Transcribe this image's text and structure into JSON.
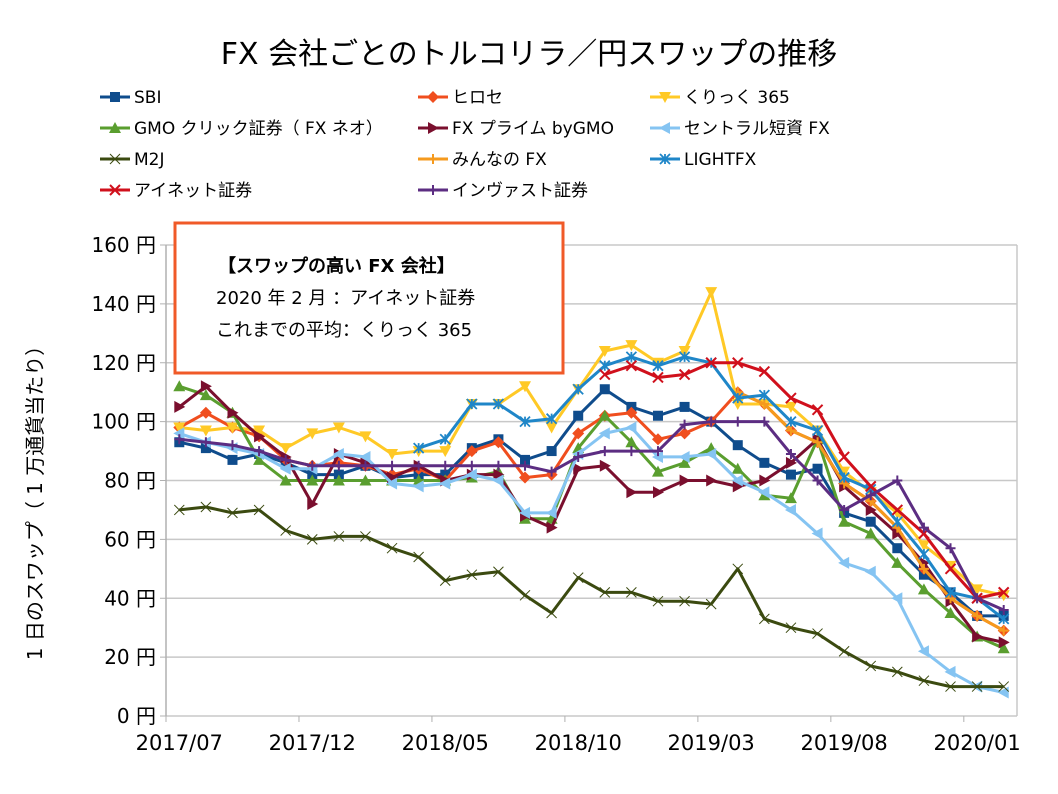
{
  "chart_data": {
    "type": "line",
    "title": "FX 会社ごとのトルコリラ／円スワップの推移",
    "xlabel": "",
    "ylabel": "1 日のスワップ（ 1 万通貨当たり）",
    "ylim": [
      0,
      160
    ],
    "y_ticks": [
      0,
      20,
      40,
      60,
      80,
      100,
      120,
      140,
      160
    ],
    "y_tick_suffix": " 円",
    "grid": true,
    "legend_position": "top",
    "x": [
      "2017/07",
      "2017/08",
      "2017/09",
      "2017/10",
      "2017/11",
      "2017/12",
      "2018/01",
      "2018/02",
      "2018/03",
      "2018/04",
      "2018/05",
      "2018/06",
      "2018/07",
      "2018/08",
      "2018/09",
      "2018/10",
      "2018/11",
      "2018/12",
      "2019/01",
      "2019/02",
      "2019/03",
      "2019/04",
      "2019/05",
      "2019/06",
      "2019/07",
      "2019/08",
      "2019/09",
      "2019/10",
      "2019/11",
      "2019/12",
      "2020/01",
      "2020/02"
    ],
    "x_tick_labels": [
      "2017/07",
      "2017/12",
      "2018/05",
      "2018/10",
      "2019/03",
      "2019/08",
      "2020/01"
    ],
    "series": [
      {
        "name": "SBI",
        "color": "#0f4c8c",
        "marker": "square",
        "values": [
          93,
          91,
          87,
          89,
          86,
          82,
          82,
          85,
          81,
          82,
          82,
          91,
          94,
          87,
          90,
          102,
          111,
          105,
          102,
          105,
          100,
          92,
          86,
          82,
          84,
          69,
          66,
          57,
          48,
          42,
          34,
          34
        ]
      },
      {
        "name": "ヒロセ",
        "color": "#f04e1e",
        "marker": "diamond",
        "values": [
          98,
          103,
          98,
          95,
          87,
          85,
          86,
          85,
          82,
          84,
          80,
          90,
          93,
          81,
          82,
          96,
          102,
          103,
          94,
          96,
          100,
          110,
          106,
          97,
          93,
          79,
          73,
          64,
          50,
          40,
          34,
          29
        ]
      },
      {
        "name": "くりっく 365",
        "color": "#ffc926",
        "marker": "triangle-down",
        "values": [
          98,
          97,
          98,
          97,
          91,
          96,
          98,
          95,
          89,
          90,
          90,
          106,
          106,
          112,
          98,
          111,
          124,
          126,
          120,
          124,
          144,
          106,
          106,
          105,
          97,
          83,
          76,
          69,
          58,
          51,
          43,
          41
        ]
      },
      {
        "name": "GMO クリック証券（ FX ネオ）",
        "color": "#5a9e2f",
        "marker": "triangle-up",
        "values": [
          112,
          109,
          103,
          87,
          80,
          80,
          80,
          80,
          80,
          80,
          80,
          81,
          83,
          67,
          67,
          91,
          102,
          93,
          83,
          86,
          91,
          84,
          75,
          74,
          94,
          66,
          62,
          52,
          43,
          35,
          27,
          23
        ]
      },
      {
        "name": "FX プライム byGMO",
        "color": "#7a0f2e",
        "marker": "triangle-right",
        "values": [
          105,
          112,
          103,
          95,
          88,
          72,
          89,
          86,
          81,
          85,
          80,
          82,
          82,
          68,
          64,
          84,
          85,
          76,
          76,
          80,
          80,
          78,
          80,
          86,
          94,
          78,
          70,
          62,
          52,
          39,
          27,
          25
        ]
      },
      {
        "name": "セントラル短資 FX",
        "color": "#85c4f2",
        "marker": "triangle-left",
        "values": [
          96,
          93,
          91,
          89,
          84,
          84,
          89,
          88,
          79,
          78,
          79,
          82,
          80,
          69,
          69,
          89,
          96,
          98,
          88,
          88,
          89,
          80,
          76,
          70,
          62,
          52,
          49,
          40,
          22,
          15,
          10,
          8
        ]
      },
      {
        "name": "M2J",
        "color": "#3b4a10",
        "marker": "bowtie",
        "values": [
          70,
          71,
          69,
          70,
          63,
          60,
          61,
          61,
          57,
          54,
          46,
          48,
          49,
          41,
          35,
          47,
          42,
          42,
          39,
          39,
          38,
          50,
          33,
          30,
          28,
          22,
          17,
          15,
          12,
          10,
          10,
          10
        ]
      },
      {
        "name": "みんなの FX",
        "color": "#f59a1e",
        "marker": "plus",
        "values": [
          null,
          null,
          null,
          null,
          null,
          null,
          null,
          null,
          null,
          null,
          null,
          null,
          null,
          null,
          null,
          null,
          null,
          null,
          null,
          null,
          null,
          110,
          106,
          97,
          93,
          79,
          73,
          64,
          50,
          40,
          34,
          29
        ]
      },
      {
        "name": "LIGHTFX",
        "color": "#1f86c8",
        "marker": "star",
        "values": [
          null,
          null,
          null,
          null,
          null,
          null,
          null,
          null,
          null,
          91,
          94,
          106,
          106,
          100,
          101,
          111,
          119,
          122,
          119,
          122,
          120,
          108,
          109,
          100,
          97,
          81,
          77,
          66,
          55,
          42,
          40,
          33
        ]
      },
      {
        "name": "アイネット証券",
        "color": "#d0101c",
        "marker": "x",
        "values": [
          null,
          null,
          null,
          null,
          null,
          null,
          null,
          null,
          null,
          null,
          null,
          null,
          null,
          null,
          null,
          null,
          116,
          119,
          115,
          116,
          120,
          120,
          117,
          108,
          104,
          88,
          78,
          70,
          62,
          50,
          40,
          42
        ]
      },
      {
        "name": "インヴァスト証券",
        "color": "#5c2d82",
        "marker": "plus",
        "values": [
          94,
          93,
          92,
          90,
          87,
          85,
          85,
          85,
          85,
          85,
          85,
          85,
          85,
          85,
          83,
          88,
          90,
          90,
          90,
          99,
          100,
          100,
          100,
          89,
          80,
          70,
          75,
          80,
          64,
          57,
          40,
          36
        ]
      }
    ],
    "annotation": {
      "heading": "【スワップの高い FX 会社】",
      "lines": [
        "2020 年 2 月 ：アイネット証券",
        "これまでの平均：くりっく 365"
      ],
      "border_color": "#f05a28"
    }
  }
}
